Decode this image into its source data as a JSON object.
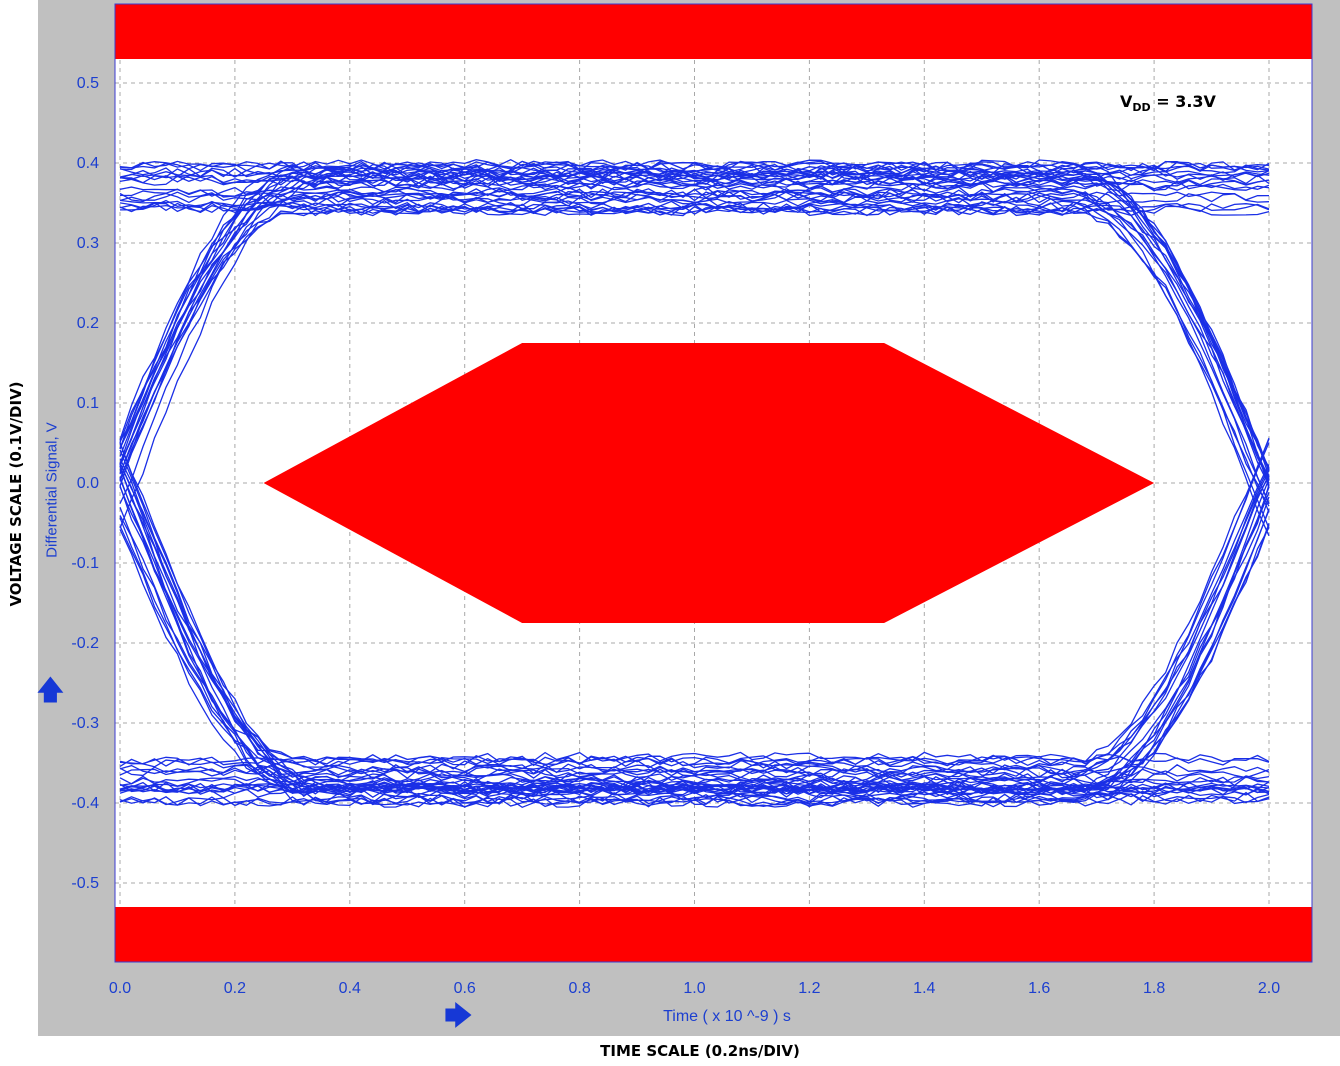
{
  "chart_data": {
    "type": "line",
    "title": "",
    "xlabel": "Time  ( x 10 ^-9 ) s",
    "ylabel": "Differential Signal, V",
    "x_ticks": [
      "0.0",
      "0.2",
      "0.4",
      "0.6",
      "0.8",
      "1.0",
      "1.2",
      "1.4",
      "1.6",
      "1.8",
      "2.0"
    ],
    "y_ticks": [
      "0.5",
      "0.4",
      "0.3",
      "0.2",
      "0.1",
      "0.0",
      "-0.1",
      "-0.2",
      "-0.3",
      "-0.4",
      "-0.5"
    ],
    "xlim": [
      0.0,
      2.0
    ],
    "ylim": [
      -0.6,
      0.6
    ],
    "grid": true,
    "eye_levels": {
      "high": 0.37,
      "low": -0.37,
      "trace_spread": 0.03
    },
    "crossings": [
      0.0,
      2.0
    ],
    "mask": {
      "hexagon": [
        [
          0.25,
          0.0
        ],
        [
          0.7,
          0.175
        ],
        [
          1.33,
          0.175
        ],
        [
          1.8,
          0.0
        ],
        [
          1.33,
          -0.175
        ],
        [
          0.7,
          -0.175
        ]
      ],
      "upper_limit": 0.53,
      "lower_limit": -0.53
    },
    "colors": {
      "trace": "#1a2fe6",
      "mask": "#ff0000",
      "axis_text": "#1c3fd0",
      "grid": "#a8a8a8",
      "plot_bg": "#ffffff",
      "frame_bg": "#c0c0c0"
    }
  },
  "labels": {
    "outer_y": "VOLTAGE SCALE (0.1V/DIV)",
    "outer_x": "TIME SCALE (0.2ns/DIV)",
    "annotation_main": "V",
    "annotation_sub": "DD",
    "annotation_rest": " = 3.3V"
  },
  "icons": {
    "y_arrow": "up-arrow-icon",
    "x_arrow": "right-arrow-icon"
  }
}
